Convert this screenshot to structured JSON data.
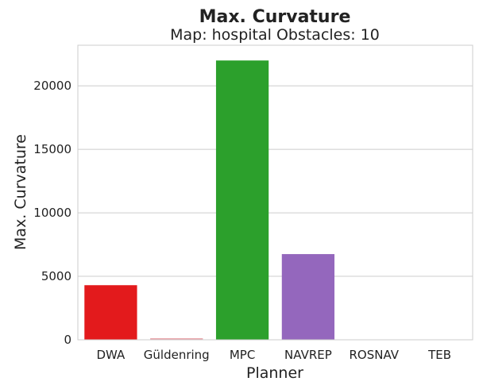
{
  "chart_data": {
    "type": "bar",
    "title": "Max. Curvature",
    "subtitle": "Map: hospital Obstacles: 10",
    "xlabel": "Planner",
    "ylabel": "Max. Curvature",
    "categories": [
      "DWA",
      "Güldenring",
      "MPC",
      "NAVREP",
      "ROSNAV",
      "TEB"
    ],
    "values": [
      4300,
      120,
      22000,
      6750,
      10,
      10
    ],
    "colors": [
      "#e31a1c",
      "#e8a0a8",
      "#2ca02c",
      "#9467bd",
      "#7f7f7f",
      "#17becf"
    ],
    "ylim": [
      0,
      23200
    ],
    "yticks": [
      0,
      5000,
      10000,
      15000,
      20000
    ],
    "grid": true,
    "legend": "none"
  }
}
